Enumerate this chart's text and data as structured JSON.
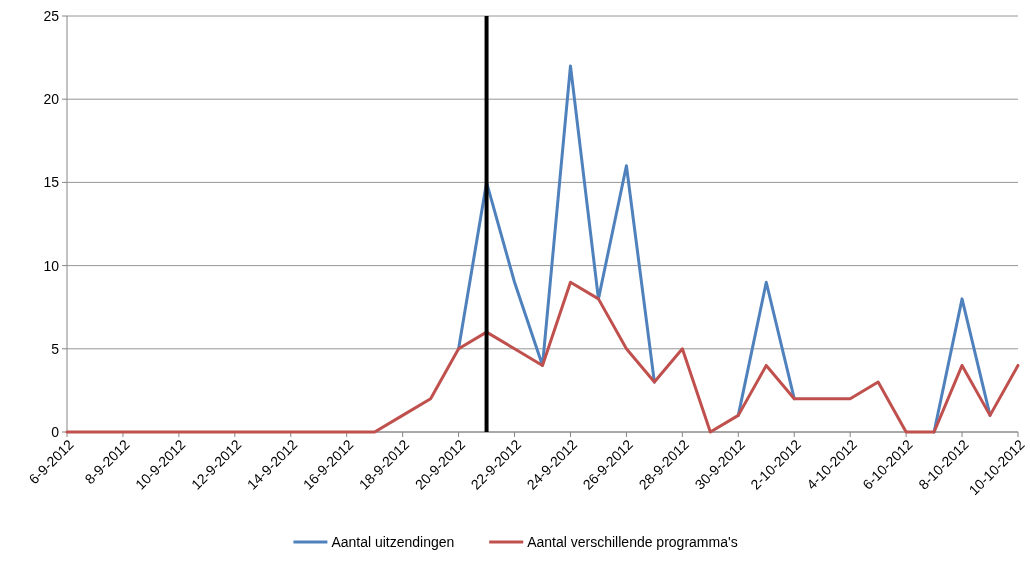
{
  "chart_data": {
    "type": "line",
    "x": [
      "2012-09-06",
      "2012-09-07",
      "2012-09-08",
      "2012-09-09",
      "2012-09-10",
      "2012-09-11",
      "2012-09-12",
      "2012-09-13",
      "2012-09-14",
      "2012-09-15",
      "2012-09-16",
      "2012-09-17",
      "2012-09-18",
      "2012-09-19",
      "2012-09-20",
      "2012-09-21",
      "2012-09-22",
      "2012-09-23",
      "2012-09-24",
      "2012-09-25",
      "2012-09-26",
      "2012-09-27",
      "2012-09-28",
      "2012-09-29",
      "2012-09-30",
      "2012-10-01",
      "2012-10-02",
      "2012-10-03",
      "2012-10-04",
      "2012-10-05",
      "2012-10-06",
      "2012-10-07",
      "2012-10-08",
      "2012-10-09",
      "2012-10-10"
    ],
    "series": [
      {
        "name": "Aantal uitzendingen",
        "color": "#4f81bd",
        "values": [
          null,
          null,
          null,
          null,
          null,
          null,
          null,
          null,
          null,
          null,
          null,
          null,
          null,
          null,
          5,
          15,
          9,
          4,
          22,
          8,
          16,
          3,
          null,
          null,
          1,
          9,
          2,
          null,
          null,
          null,
          null,
          0,
          8,
          1,
          null
        ]
      },
      {
        "name": "Aantal verschillende programma's",
        "color": "#c0504d",
        "values": [
          0,
          0,
          0,
          0,
          0,
          0,
          0,
          0,
          0,
          0,
          0,
          0,
          1,
          2,
          5,
          6,
          5,
          4,
          9,
          8,
          5,
          3,
          5,
          0,
          1,
          4,
          2,
          2,
          2,
          3,
          0,
          0,
          4,
          1,
          4
        ]
      }
    ],
    "xlim": [
      "2012-09-06",
      "2012-10-10"
    ],
    "xticks": [
      {
        "value": "2012-09-06",
        "label": "6-9-2012"
      },
      {
        "value": "2012-09-08",
        "label": "8-9-2012"
      },
      {
        "value": "2012-09-10",
        "label": "10-9-2012"
      },
      {
        "value": "2012-09-12",
        "label": "12-9-2012"
      },
      {
        "value": "2012-09-14",
        "label": "14-9-2012"
      },
      {
        "value": "2012-09-16",
        "label": "16-9-2012"
      },
      {
        "value": "2012-09-18",
        "label": "18-9-2012"
      },
      {
        "value": "2012-09-20",
        "label": "20-9-2012"
      },
      {
        "value": "2012-09-22",
        "label": "22-9-2012"
      },
      {
        "value": "2012-09-24",
        "label": "24-9-2012"
      },
      {
        "value": "2012-09-26",
        "label": "26-9-2012"
      },
      {
        "value": "2012-09-28",
        "label": "28-9-2012"
      },
      {
        "value": "2012-09-30",
        "label": "30-9-2012"
      },
      {
        "value": "2012-10-02",
        "label": "2-10-2012"
      },
      {
        "value": "2012-10-04",
        "label": "4-10-2012"
      },
      {
        "value": "2012-10-06",
        "label": "6-10-2012"
      },
      {
        "value": "2012-10-08",
        "label": "8-10-2012"
      },
      {
        "value": "2012-10-10",
        "label": "10-10-2012"
      }
    ],
    "ylim": [
      0,
      25
    ],
    "yticks": [
      0,
      5,
      10,
      15,
      20,
      25
    ],
    "grid": "y",
    "legend": "bottom",
    "marker": "none",
    "line_style": "solid",
    "ref_lines": [
      {
        "axis": "x",
        "value": "2012-09-21",
        "color": "#000000"
      }
    ]
  }
}
